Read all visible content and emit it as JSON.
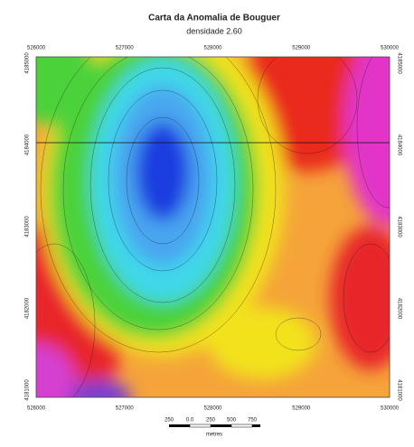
{
  "title": "Carta da Anomalia de Bouguer",
  "subtitle": "densidade 2.60",
  "x_ticks": [
    526000,
    527000,
    528000,
    529000,
    530000
  ],
  "y_ticks": [
    4185000,
    4184000,
    4183000,
    4182000,
    4181000
  ],
  "scale_bar": {
    "labels": [
      "250",
      "0.0",
      "250",
      "500",
      "750"
    ],
    "unit": "metres"
  }
}
